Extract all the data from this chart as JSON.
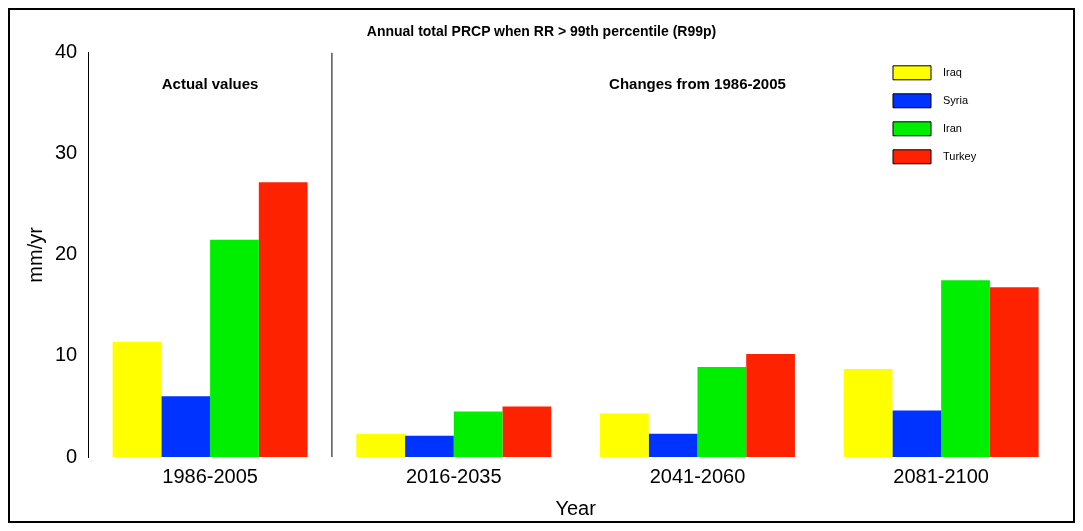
{
  "chart_data": {
    "type": "bar",
    "title": "Annual total PRCP when RR > 99th percentile (R99p)",
    "xlabel": "Year",
    "ylabel": "mm/yr",
    "categories": [
      "1986-2005",
      "2016-2035",
      "2041-2060",
      "2081-2100"
    ],
    "series": [
      {
        "name": "Iraq",
        "color": "#ffff00",
        "values": [
          11.4,
          2.3,
          4.3,
          8.7
        ]
      },
      {
        "name": "Syria",
        "color": "#0033ff",
        "values": [
          6.0,
          2.1,
          2.3,
          4.6
        ]
      },
      {
        "name": "Iran",
        "color": "#00ee00",
        "values": [
          21.5,
          4.5,
          8.9,
          17.5
        ]
      },
      {
        "name": "Turkey",
        "color": "#ff2200",
        "values": [
          27.2,
          5.0,
          10.2,
          16.8
        ]
      }
    ],
    "ylim": [
      0,
      40
    ],
    "yticks": [
      0,
      10,
      20,
      30,
      40
    ],
    "grid": false,
    "legend": "top right",
    "annotations": [
      "Actual values",
      "Changes from 1986-2005"
    ]
  }
}
